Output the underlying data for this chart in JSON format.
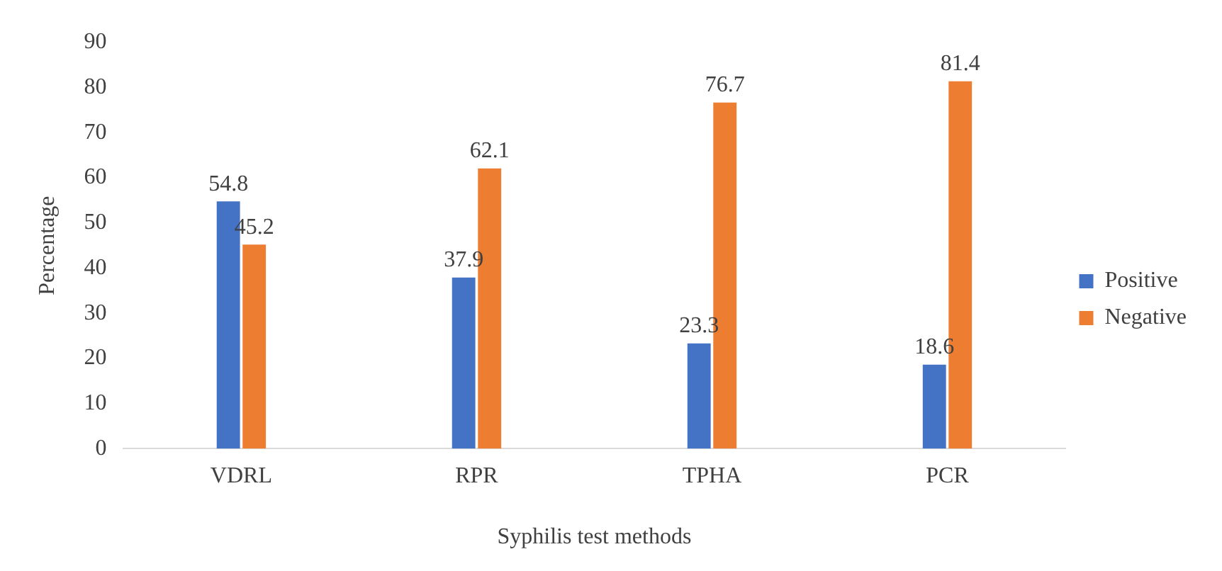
{
  "chart_data": {
    "type": "bar",
    "xlabel": "Syphilis test methods",
    "ylabel": "Percentage",
    "categories": [
      "VDRL",
      "RPR",
      "TPHA",
      "PCR"
    ],
    "series": [
      {
        "name": "Positive",
        "color": "#4472c4",
        "values": [
          54.8,
          37.9,
          23.3,
          18.6
        ]
      },
      {
        "name": "Negative",
        "color": "#ed7d31",
        "values": [
          45.2,
          62.1,
          76.7,
          81.4
        ]
      }
    ],
    "ylim": [
      0,
      90
    ],
    "yticks": [
      0,
      10,
      20,
      30,
      40,
      50,
      60,
      70,
      80,
      90
    ],
    "grid": false,
    "legend": "right",
    "data_labels": true
  }
}
